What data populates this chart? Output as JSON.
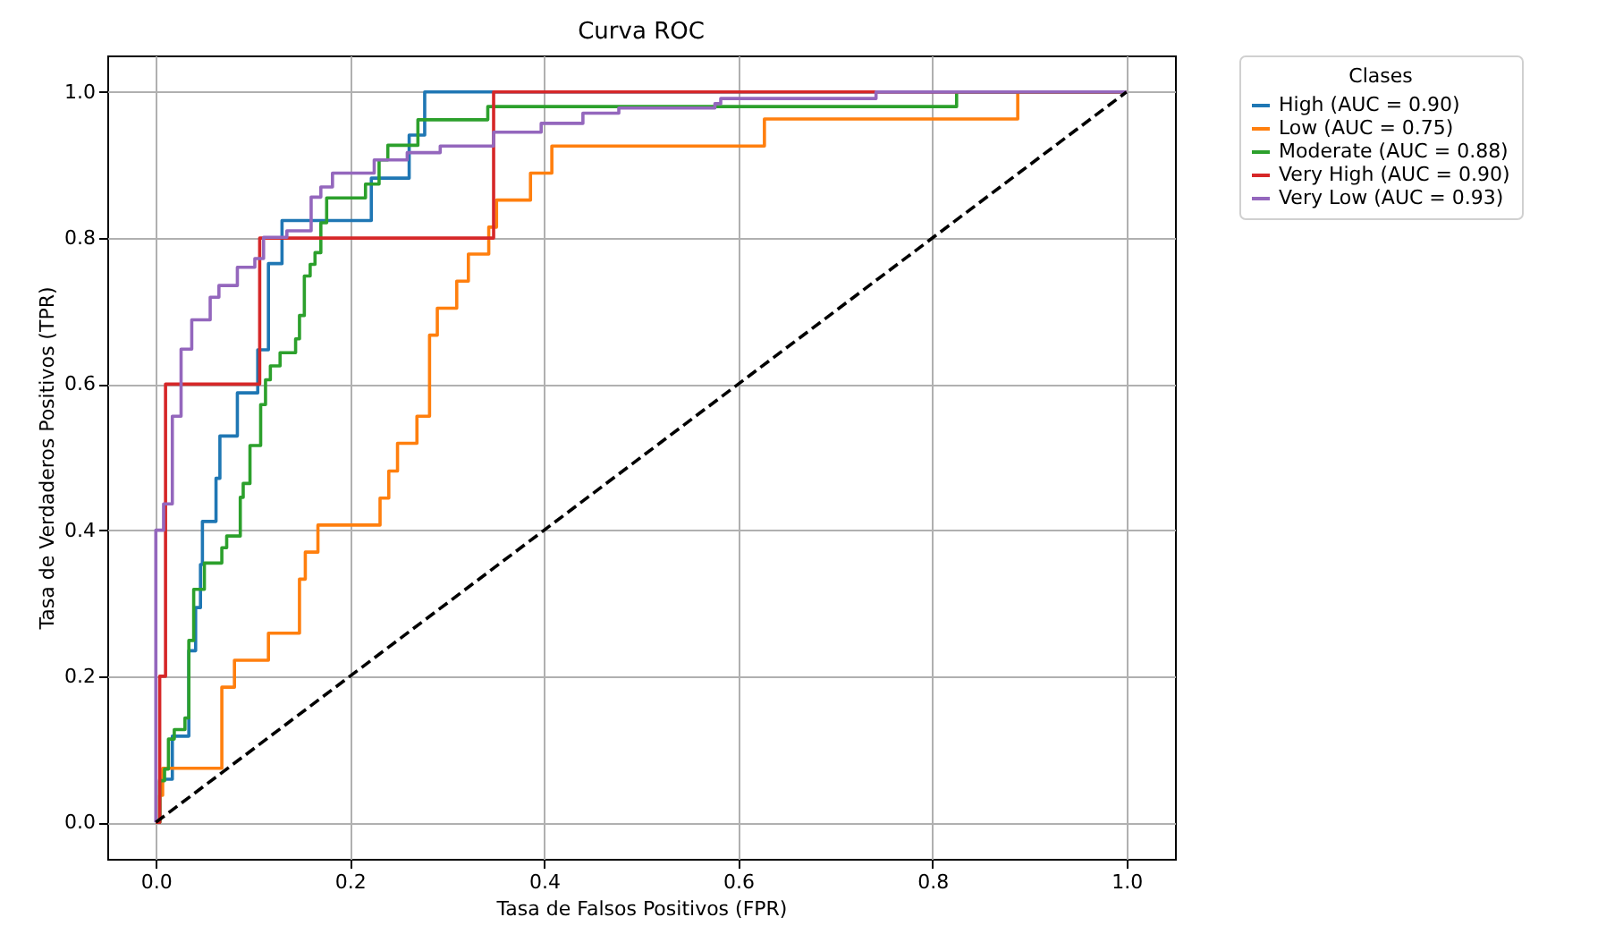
{
  "chart_data": {
    "type": "line",
    "title": "Curva ROC",
    "xlabel": "Tasa de Falsos Positivos (FPR)",
    "ylabel": "Tasa de Verdaderos Positivos (TPR)",
    "legend_title": "Clases",
    "legend": "right",
    "grid": true,
    "xlim": [
      -0.05,
      1.05
    ],
    "ylim": [
      -0.05,
      1.05
    ],
    "xticks": [
      {
        "value": 0,
        "label": "0.0"
      },
      0.2,
      0.4,
      0.6,
      0.8,
      {
        "value": 1,
        "label": "1.0"
      }
    ],
    "yticks": [
      {
        "value": 0,
        "label": "0.0"
      },
      0.2,
      0.4,
      0.6,
      0.8,
      {
        "value": 1,
        "label": "1.0"
      }
    ],
    "series": [
      {
        "name": "High (AUC = 0.90)",
        "color": "#1f77b4",
        "x": [
          0,
          0.004,
          0.004,
          0.017,
          0.017,
          0.034,
          0.034,
          0.041,
          0.041,
          0.046,
          0.046,
          0.048,
          0.048,
          0.062,
          0.062,
          0.066,
          0.066,
          0.084,
          0.084,
          0.105,
          0.105,
          0.116,
          0.116,
          0.13,
          0.13,
          0.222,
          0.222,
          0.261,
          0.261,
          0.277,
          0.277,
          1
        ],
        "values": [
          0,
          0,
          0.059,
          0.059,
          0.118,
          0.118,
          0.235,
          0.235,
          0.294,
          0.294,
          0.353,
          0.353,
          0.412,
          0.412,
          0.471,
          0.471,
          0.529,
          0.529,
          0.588,
          0.588,
          0.647,
          0.647,
          0.765,
          0.765,
          0.824,
          0.824,
          0.882,
          0.882,
          0.941,
          0.941,
          1,
          1
        ]
      },
      {
        "name": "Low (AUC = 0.75)",
        "color": "#ff7f0e",
        "x": [
          0,
          0.004,
          0.004,
          0.007,
          0.007,
          0.068,
          0.068,
          0.081,
          0.081,
          0.116,
          0.116,
          0.148,
          0.148,
          0.154,
          0.154,
          0.167,
          0.167,
          0.231,
          0.231,
          0.24,
          0.24,
          0.249,
          0.249,
          0.269,
          0.269,
          0.282,
          0.282,
          0.29,
          0.29,
          0.31,
          0.31,
          0.322,
          0.322,
          0.343,
          0.343,
          0.351,
          0.351,
          0.386,
          0.386,
          0.408,
          0.408,
          0.627,
          0.627,
          0.888,
          0.888,
          1
        ],
        "values": [
          0,
          0,
          0.037,
          0.037,
          0.074,
          0.074,
          0.185,
          0.185,
          0.222,
          0.222,
          0.259,
          0.259,
          0.333,
          0.333,
          0.37,
          0.37,
          0.407,
          0.407,
          0.444,
          0.444,
          0.481,
          0.481,
          0.519,
          0.519,
          0.556,
          0.556,
          0.667,
          0.667,
          0.704,
          0.704,
          0.741,
          0.741,
          0.778,
          0.778,
          0.815,
          0.815,
          0.852,
          0.852,
          0.889,
          0.889,
          0.926,
          0.926,
          0.963,
          0.963,
          1,
          1
        ]
      },
      {
        "name": "Moderate (AUC = 0.88)",
        "color": "#2ca02c",
        "x": [
          0,
          0.004,
          0.004,
          0.009,
          0.009,
          0.013,
          0.013,
          0.019,
          0.019,
          0.03,
          0.03,
          0.034,
          0.034,
          0.039,
          0.039,
          0.05,
          0.05,
          0.068,
          0.068,
          0.073,
          0.073,
          0.087,
          0.087,
          0.09,
          0.09,
          0.097,
          0.097,
          0.108,
          0.108,
          0.113,
          0.113,
          0.118,
          0.118,
          0.128,
          0.128,
          0.144,
          0.144,
          0.148,
          0.148,
          0.153,
          0.153,
          0.159,
          0.159,
          0.164,
          0.164,
          0.17,
          0.17,
          0.176,
          0.176,
          0.216,
          0.216,
          0.23,
          0.23,
          0.239,
          0.239,
          0.27,
          0.27,
          0.342,
          0.342,
          0.825,
          0.825,
          1
        ],
        "values": [
          0,
          0,
          0.057,
          0.057,
          0.073,
          0.073,
          0.114,
          0.114,
          0.127,
          0.127,
          0.143,
          0.143,
          0.249,
          0.249,
          0.319,
          0.319,
          0.355,
          0.355,
          0.376,
          0.376,
          0.392,
          0.392,
          0.445,
          0.445,
          0.464,
          0.464,
          0.516,
          0.516,
          0.572,
          0.572,
          0.606,
          0.606,
          0.625,
          0.625,
          0.643,
          0.643,
          0.662,
          0.662,
          0.694,
          0.694,
          0.748,
          0.748,
          0.764,
          0.764,
          0.78,
          0.78,
          0.821,
          0.821,
          0.855,
          0.855,
          0.874,
          0.874,
          0.907,
          0.907,
          0.927,
          0.927,
          0.962,
          0.962,
          0.98,
          0.98,
          1,
          1
        ]
      },
      {
        "name": "Very High (AUC = 0.90)",
        "color": "#d62728",
        "x": [
          0,
          0.004,
          0.004,
          0.01,
          0.01,
          0.107,
          0.107,
          0.348,
          0.348,
          1
        ],
        "values": [
          0,
          0,
          0.2,
          0.2,
          0.6,
          0.6,
          0.8,
          0.8,
          1,
          1
        ]
      },
      {
        "name": "Very Low (AUC = 0.93)",
        "color": "#9467bd",
        "x": [
          0,
          0,
          0.008,
          0.008,
          0.017,
          0.017,
          0.026,
          0.026,
          0.037,
          0.037,
          0.056,
          0.056,
          0.065,
          0.065,
          0.084,
          0.084,
          0.102,
          0.102,
          0.111,
          0.111,
          0.135,
          0.135,
          0.16,
          0.16,
          0.17,
          0.17,
          0.182,
          0.182,
          0.225,
          0.225,
          0.259,
          0.259,
          0.293,
          0.293,
          0.348,
          0.348,
          0.397,
          0.397,
          0.44,
          0.44,
          0.477,
          0.477,
          0.576,
          0.576,
          0.582,
          0.582,
          0.742,
          0.742,
          1
        ],
        "values": [
          0,
          0.4,
          0.4,
          0.436,
          0.436,
          0.556,
          0.556,
          0.648,
          0.648,
          0.688,
          0.688,
          0.719,
          0.719,
          0.735,
          0.735,
          0.76,
          0.76,
          0.772,
          0.772,
          0.801,
          0.801,
          0.81,
          0.81,
          0.856,
          0.856,
          0.87,
          0.87,
          0.889,
          0.889,
          0.907,
          0.907,
          0.917,
          0.917,
          0.926,
          0.926,
          0.945,
          0.945,
          0.957,
          0.957,
          0.971,
          0.971,
          0.978,
          0.978,
          0.984,
          0.984,
          0.991,
          0.991,
          1,
          1
        ]
      },
      {
        "color": "#000000",
        "line_style": "dashed",
        "x": [
          0,
          1
        ],
        "values": [
          0,
          1
        ]
      }
    ]
  }
}
